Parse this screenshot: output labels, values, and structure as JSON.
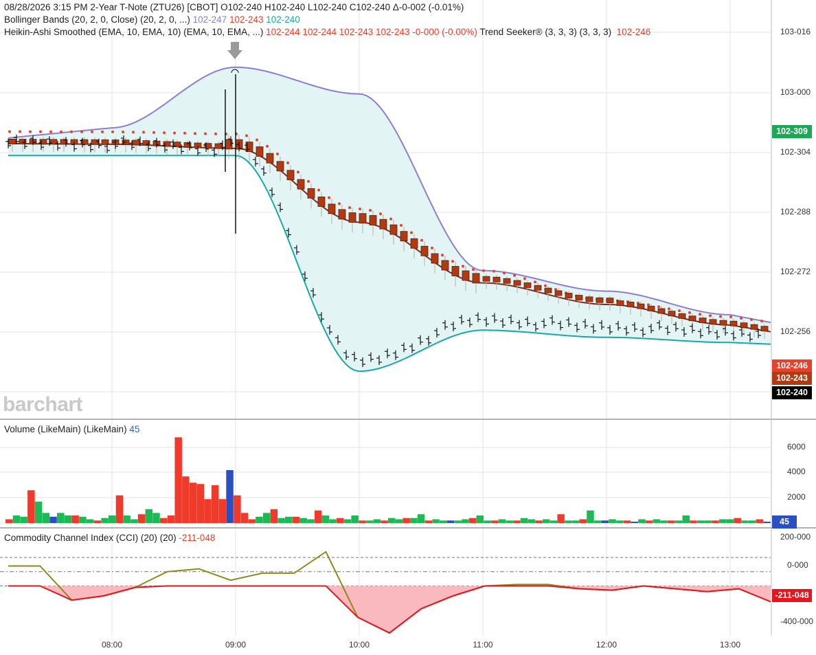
{
  "header": {
    "line1": "08/28/2026  3:15 PM 2-Year T-Note (ZTU26) [CBOT] O102-240 H102-240 L102-240 C102-240 Δ-0-002 (-0.01%)",
    "bb_label": "Bollinger Bands (20, 2, 0, Close)  (20, 2, 0, ...)",
    "bb_upper": "102-247",
    "bb_mid": "102-243",
    "bb_lower": "102-240",
    "ha_label": "Heikin-Ashi Smoothed (EMA, 10, EMA, 10)  (EMA, 10, EMA, ...)",
    "ha_values": "102-244 102-244 102-243 102-243 -0-000 (-0.00%)",
    "ts_label": "Trend Seeker® (3, 3, 3)  (3, 3, 3)",
    "ts_value": "102-246"
  },
  "logo": "barchart",
  "price_axis": {
    "ticks": [
      "103-016",
      "103-000",
      "102-304",
      "102-288",
      "102-272",
      "102-256"
    ],
    "tags": {
      "green": "102-309",
      "red": "102-246",
      "brown": "102-243",
      "black": "102-240"
    }
  },
  "volume": {
    "label": "Volume (LikeMain)  (LikeMain)",
    "value": "45",
    "ticks": [
      "6000",
      "4000",
      "2000"
    ]
  },
  "cci": {
    "label": "Commodity Channel Index (CCI) (20)  (20)",
    "value": "-211-048",
    "ticks": [
      "200-000",
      "0-000",
      "-400-000"
    ]
  },
  "x_ticks": [
    "08:00",
    "09:00",
    "10:00",
    "11:00",
    "12:00",
    "13:00"
  ],
  "colors": {
    "bb_upper": "#8a7fd0",
    "bb_lower": "#17a9a6",
    "bb_fill": "#e3f4f4",
    "ha_candle": "#b03a12",
    "ha_line": "#7a2e22",
    "trend_dots": "#e8412b",
    "vol_up": "#1db954",
    "vol_down": "#ef3b2c",
    "vol_neutral": "#2a4fc1",
    "cci_line": "#8c8a1a",
    "cci_neg": "#e8141e",
    "cci_fill": "#f9b9bf"
  },
  "chart_data": [
    {
      "type": "line",
      "panel": "price",
      "title": "2-Year T-Note (ZTU26) [CBOT]",
      "x": [
        "08:00",
        "09:00",
        "10:00",
        "11:00",
        "12:00",
        "13:00"
      ],
      "ylim": [
        102.7,
        103.05
      ],
      "series": [
        {
          "name": "Bollinger upper",
          "values": [
            102.957,
            103.016,
            102.99,
            102.818,
            102.798,
            102.775
          ]
        },
        {
          "name": "Bollinger lower",
          "values": [
            102.93,
            102.93,
            102.72,
            102.76,
            102.753,
            102.748
          ]
        },
        {
          "name": "Heikin-Ashi Smoothed",
          "values": [
            102.941,
            102.937,
            102.865,
            102.806,
            102.785,
            102.765
          ]
        },
        {
          "name": "Trend Seeker",
          "values": [
            102.95,
            102.948,
            102.875,
            102.815,
            102.786,
            102.77
          ]
        }
      ]
    },
    {
      "type": "bar",
      "panel": "volume",
      "title": "Volume (LikeMain)",
      "ylim": [
        0,
        7000
      ],
      "values": [
        300,
        600,
        500,
        2600,
        1700,
        800,
        500,
        800,
        600,
        600,
        500,
        300,
        200,
        400,
        600,
        2200,
        600,
        300,
        700,
        1100,
        800,
        400,
        600,
        6800,
        3700,
        3200,
        3100,
        1900,
        3000,
        1900,
        4200,
        2200,
        800,
        300,
        500,
        800,
        1100,
        400,
        500,
        500,
        400,
        300,
        1000,
        600,
        300,
        400,
        300,
        600,
        200,
        200,
        300,
        200,
        400,
        300,
        400,
        400,
        700,
        200,
        300,
        200,
        200,
        200,
        300,
        400,
        600,
        200,
        200,
        300,
        200,
        200,
        400,
        300,
        200,
        300,
        200,
        700,
        200,
        200,
        300,
        1000,
        200,
        200,
        300,
        200,
        200,
        100,
        300,
        200,
        300,
        200,
        200,
        200,
        600,
        200,
        200,
        200,
        200,
        300,
        300,
        400,
        200,
        200,
        300,
        45
      ]
    },
    {
      "type": "line",
      "panel": "cci",
      "title": "Commodity Channel Index (CCI) (20)",
      "ylim": [
        -450,
        250
      ],
      "x": [
        "07:15",
        "07:30",
        "07:45",
        "08:00",
        "08:15",
        "08:30",
        "08:45",
        "09:00",
        "09:15",
        "09:30",
        "09:45",
        "10:00",
        "10:15",
        "10:30",
        "10:45",
        "11:00",
        "11:15",
        "11:30",
        "11:45",
        "12:00",
        "12:15",
        "12:30",
        "12:45",
        "13:00",
        "13:15"
      ],
      "values": [
        40,
        40,
        -200,
        -170,
        -110,
        0,
        20,
        -60,
        -10,
        -10,
        140,
        -320,
        -430,
        -260,
        -170,
        -100,
        -90,
        -90,
        -120,
        -130,
        -100,
        -120,
        -140,
        -120,
        -211
      ]
    }
  ]
}
